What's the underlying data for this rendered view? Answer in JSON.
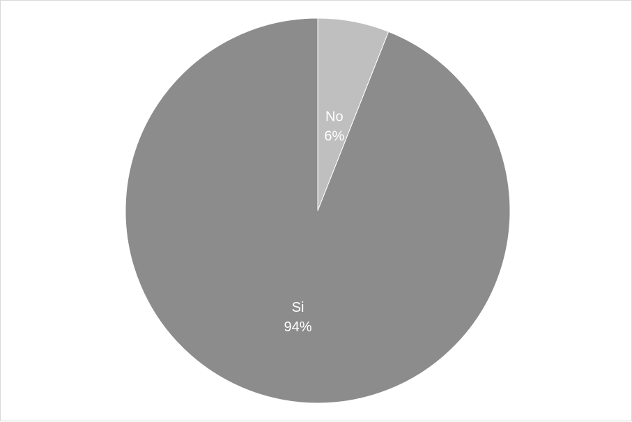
{
  "chart_data": {
    "type": "pie",
    "slices": [
      {
        "name": "No",
        "value": 6,
        "value_label": "6%",
        "color": "#bfbfbf"
      },
      {
        "name": "Si",
        "value": 94,
        "value_label": "94%",
        "color": "#8c8c8c"
      }
    ],
    "start_angle_deg": 0,
    "direction": "clockwise",
    "legend": "none"
  }
}
